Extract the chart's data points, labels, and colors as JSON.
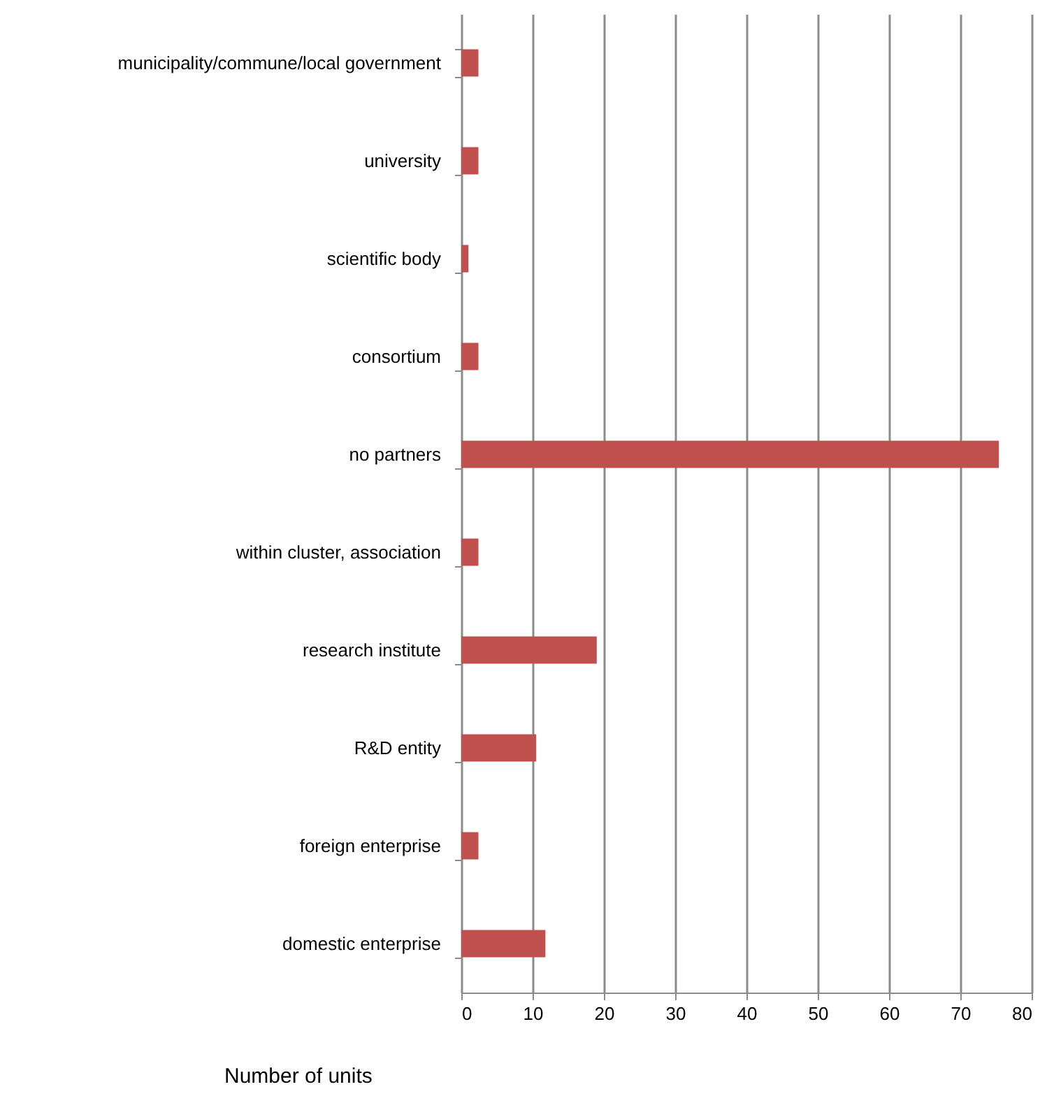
{
  "chart_data": {
    "type": "bar",
    "orientation": "horizontal",
    "xlabel": "Number of units",
    "categories": [
      "municipality/commune/local government",
      "university",
      "scientific body",
      "consortium",
      "no partners",
      "within cluster, association",
      "research institute",
      "R&D entity",
      "foreign enterprise",
      "domestic enterprise"
    ],
    "values": [
      2.4,
      2.4,
      1,
      2.4,
      75.4,
      2.4,
      19,
      10.5,
      2.4,
      11.8
    ],
    "color": "#c0504d",
    "xlim": [
      0,
      80
    ],
    "xticks": [
      0,
      10,
      20,
      30,
      40,
      50,
      60,
      70,
      80
    ],
    "grid": "x"
  }
}
